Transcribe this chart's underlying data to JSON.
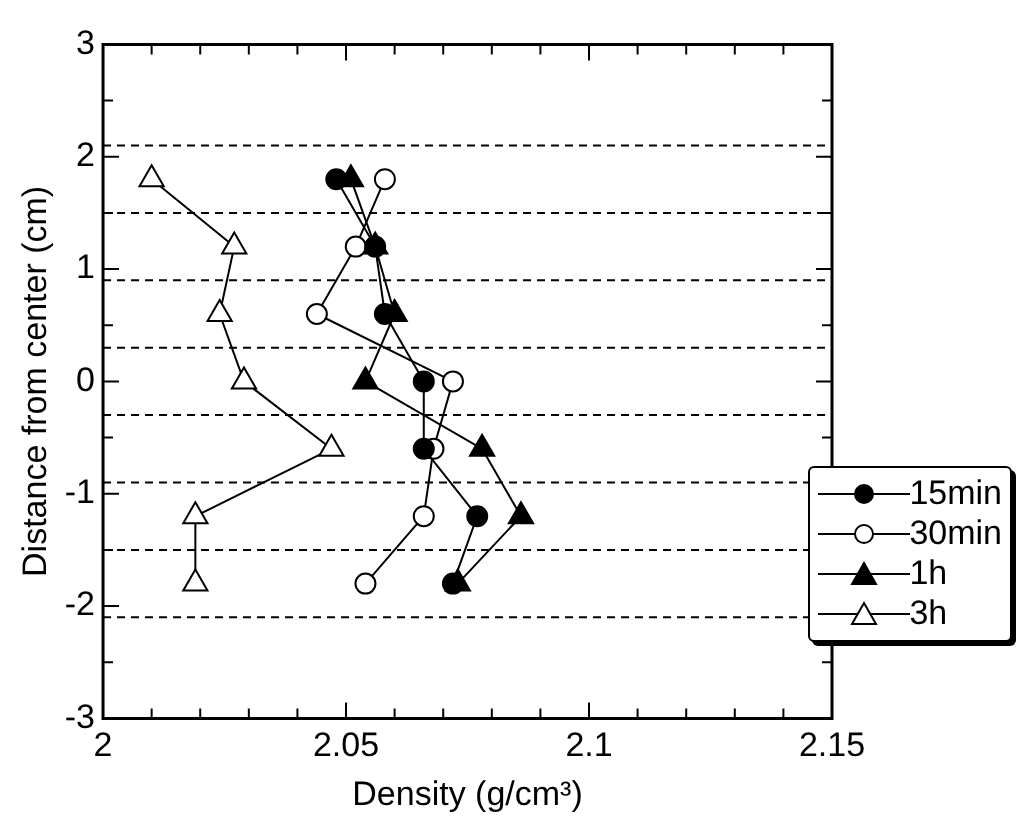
{
  "chart_data": {
    "type": "line",
    "xlabel": "Density (g/cm³)",
    "ylabel": "Distance from center (cm)",
    "xlim": [
      2,
      2.15
    ],
    "ylim": [
      -3,
      3
    ],
    "xticks": [
      2,
      {
        "value": 2.01,
        "label": null
      },
      {
        "value": 2.02,
        "label": null
      },
      {
        "value": 2.03,
        "label": null
      },
      {
        "value": 2.04,
        "label": null
      },
      2.05,
      {
        "value": 2.06,
        "label": null
      },
      {
        "value": 2.07,
        "label": null
      },
      {
        "value": 2.08,
        "label": null
      },
      {
        "value": 2.09,
        "label": null
      },
      2.1,
      {
        "value": 2.11,
        "label": null
      },
      {
        "value": 2.12,
        "label": null
      },
      {
        "value": 2.13,
        "label": null
      },
      {
        "value": 2.14,
        "label": null
      },
      2.15
    ],
    "yticks": [
      -3,
      {
        "value": -2.5,
        "label": null
      },
      -2,
      {
        "value": -1.5,
        "label": null
      },
      -1,
      {
        "value": -0.5,
        "label": null
      },
      0,
      {
        "value": 0.5,
        "label": null
      },
      1,
      {
        "value": 1.5,
        "label": null
      },
      2,
      {
        "value": 2.5,
        "label": null
      },
      3
    ],
    "grid": false,
    "legend": "right",
    "line_style": "solid",
    "ref_lines": [
      {
        "axis": "y",
        "value": 2.1,
        "line_style": "dashed"
      },
      {
        "axis": "y",
        "value": 1.5,
        "line_style": "dashed"
      },
      {
        "axis": "y",
        "value": 0.9,
        "line_style": "dashed"
      },
      {
        "axis": "y",
        "value": 0.3,
        "line_style": "dashed"
      },
      {
        "axis": "y",
        "value": -0.3,
        "line_style": "dashed"
      },
      {
        "axis": "y",
        "value": -0.9,
        "line_style": "dashed"
      },
      {
        "axis": "y",
        "value": -1.5,
        "line_style": "dashed"
      },
      {
        "axis": "y",
        "value": -2.1,
        "line_style": "dashed"
      }
    ],
    "series": [
      {
        "name": "15min",
        "color": "#000000",
        "marker": "circle",
        "x": [
          2.048,
          2.056,
          2.058,
          2.066,
          2.066,
          2.077,
          2.072
        ],
        "values": [
          1.8,
          1.2,
          0.6,
          0,
          -0.6,
          -1.2,
          -1.8
        ]
      },
      {
        "name": "30min",
        "color": "#ffffff",
        "marker": "circle",
        "x": [
          2.058,
          2.052,
          2.044,
          2.072,
          2.068,
          2.066,
          2.054
        ],
        "values": [
          1.8,
          1.2,
          0.6,
          0,
          -0.6,
          -1.2,
          -1.8
        ]
      },
      {
        "name": "1h",
        "color": "#000000",
        "marker": "triangle",
        "x": [
          2.051,
          2.056,
          2.06,
          2.054,
          2.078,
          2.086,
          2.073
        ],
        "values": [
          1.8,
          1.2,
          0.6,
          0,
          -0.6,
          -1.2,
          -1.8
        ]
      },
      {
        "name": "3h",
        "color": "#ffffff",
        "marker": "triangle",
        "x": [
          2.01,
          2.027,
          2.024,
          2.029,
          2.047,
          2.019,
          2.019
        ],
        "values": [
          1.8,
          1.2,
          0.6,
          0,
          -0.6,
          -1.2,
          -1.8
        ]
      }
    ]
  }
}
